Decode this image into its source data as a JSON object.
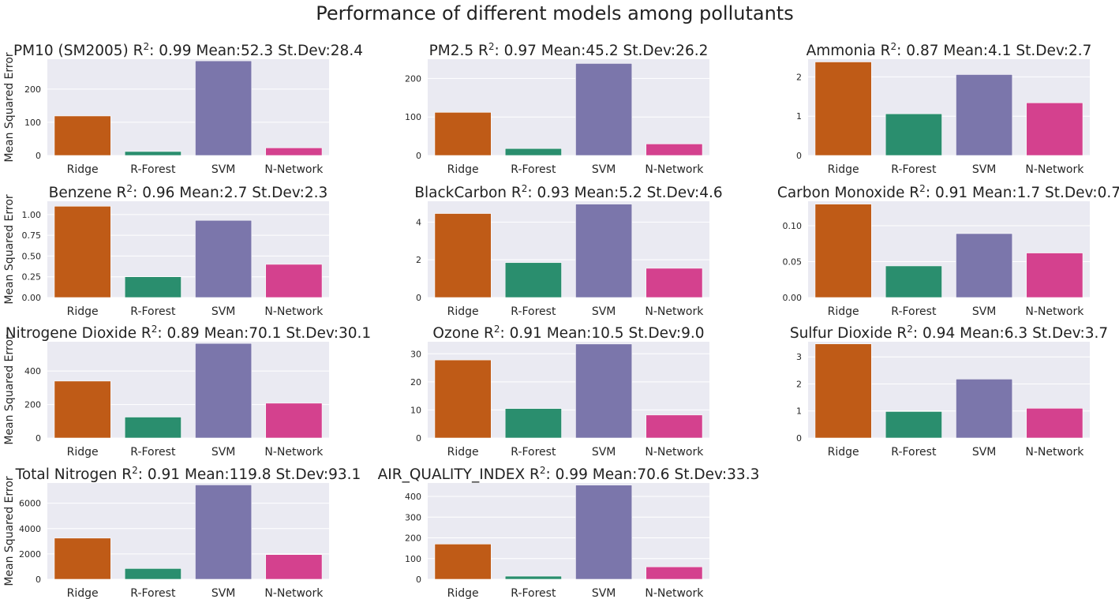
{
  "figure_title": "Performance of different models among pollutants",
  "ylabel": "Mean Squared Error",
  "categories": [
    "Ridge",
    "R-Forest",
    "SVM",
    "N-Network"
  ],
  "colors": [
    "#bf5b17",
    "#2a8e6e",
    "#7b76ab",
    "#d4418e"
  ],
  "chart_data": [
    {
      "type": "bar",
      "name": "PM10 (SM2005)",
      "r2": "0.99",
      "mean": "52.3",
      "stdev": "28.4",
      "categories": [
        "Ridge",
        "R-Forest",
        "SVM",
        "N-Network"
      ],
      "values": [
        119,
        12,
        285,
        23
      ],
      "ylim": [
        0,
        290
      ],
      "yticks": [
        0,
        100,
        200
      ],
      "yticklabels": [
        "0",
        "100",
        "200"
      ],
      "ylabel": "Mean Squared Error"
    },
    {
      "type": "bar",
      "name": "PM2.5",
      "r2": "0.97",
      "mean": "45.2",
      "stdev": "26.2",
      "categories": [
        "Ridge",
        "R-Forest",
        "SVM",
        "N-Network"
      ],
      "values": [
        112,
        18,
        239,
        30
      ],
      "ylim": [
        0,
        250
      ],
      "yticks": [
        0,
        100,
        200
      ],
      "yticklabels": [
        "0",
        "100",
        "200"
      ],
      "ylabel": ""
    },
    {
      "type": "bar",
      "name": "Ammonia",
      "r2": "0.87",
      "mean": "4.1",
      "stdev": "2.7",
      "categories": [
        "Ridge",
        "R-Forest",
        "SVM",
        "N-Network"
      ],
      "values": [
        2.38,
        1.06,
        2.06,
        1.34
      ],
      "ylim": [
        0,
        2.45
      ],
      "yticks": [
        0,
        1,
        2
      ],
      "yticklabels": [
        "0",
        "1",
        "2"
      ],
      "ylabel": ""
    },
    {
      "type": "bar",
      "name": "Benzene",
      "r2": "0.96",
      "mean": "2.7",
      "stdev": "2.3",
      "categories": [
        "Ridge",
        "R-Forest",
        "SVM",
        "N-Network"
      ],
      "values": [
        1.1,
        0.25,
        0.93,
        0.4
      ],
      "ylim": [
        0,
        1.16
      ],
      "yticks": [
        0,
        0.25,
        0.5,
        0.75,
        1.0
      ],
      "yticklabels": [
        "0.00",
        "0.25",
        "0.50",
        "0.75",
        "1.00"
      ],
      "ylabel": "Mean Squared Error"
    },
    {
      "type": "bar",
      "name": "BlackCarbon",
      "r2": "0.93",
      "mean": "5.2",
      "stdev": "4.6",
      "categories": [
        "Ridge",
        "R-Forest",
        "SVM",
        "N-Network"
      ],
      "values": [
        4.45,
        1.85,
        4.95,
        1.55
      ],
      "ylim": [
        0,
        5.1
      ],
      "yticks": [
        0,
        2,
        4
      ],
      "yticklabels": [
        "0",
        "2",
        "4"
      ],
      "ylabel": ""
    },
    {
      "type": "bar",
      "name": "Carbon Monoxide",
      "r2": "0.91",
      "mean": "1.7",
      "stdev": "0.7",
      "categories": [
        "Ridge",
        "R-Forest",
        "SVM",
        "N-Network"
      ],
      "values": [
        0.13,
        0.044,
        0.089,
        0.062
      ],
      "ylim": [
        0,
        0.134
      ],
      "yticks": [
        0,
        0.05,
        0.1
      ],
      "yticklabels": [
        "0.00",
        "0.05",
        "0.10"
      ],
      "ylabel": ""
    },
    {
      "type": "bar",
      "name": "Nitrogene Dioxide",
      "r2": "0.89",
      "mean": "70.1",
      "stdev": "30.1",
      "categories": [
        "Ridge",
        "R-Forest",
        "SVM",
        "N-Network"
      ],
      "values": [
        340,
        125,
        565,
        208
      ],
      "ylim": [
        0,
        575
      ],
      "yticks": [
        0,
        200,
        400
      ],
      "yticklabels": [
        "0",
        "200",
        "400"
      ],
      "ylabel": "Mean Squared Error"
    },
    {
      "type": "bar",
      "name": "Ozone",
      "r2": "0.91",
      "mean": "10.5",
      "stdev": "9.0",
      "categories": [
        "Ridge",
        "R-Forest",
        "SVM",
        "N-Network"
      ],
      "values": [
        27.8,
        10.5,
        33.5,
        8.2
      ],
      "ylim": [
        0,
        34.3
      ],
      "yticks": [
        0,
        10,
        20,
        30
      ],
      "yticklabels": [
        "0",
        "10",
        "20",
        "30"
      ],
      "ylabel": ""
    },
    {
      "type": "bar",
      "name": "Sulfur Dioxide",
      "r2": "0.94",
      "mean": "6.3",
      "stdev": "3.7",
      "categories": [
        "Ridge",
        "R-Forest",
        "SVM",
        "N-Network"
      ],
      "values": [
        3.48,
        0.98,
        2.18,
        1.1
      ],
      "ylim": [
        0,
        3.56
      ],
      "yticks": [
        0,
        1,
        2,
        3
      ],
      "yticklabels": [
        "0",
        "1",
        "2",
        "3"
      ],
      "ylabel": ""
    },
    {
      "type": "bar",
      "name": "Total Nitrogen",
      "r2": "0.91",
      "mean": "119.8",
      "stdev": "93.1",
      "categories": [
        "Ridge",
        "R-Forest",
        "SVM",
        "N-Network"
      ],
      "values": [
        3250,
        850,
        7450,
        1950
      ],
      "ylim": [
        0,
        7600
      ],
      "yticks": [
        0,
        2000,
        4000,
        6000
      ],
      "yticklabels": [
        "0",
        "2000",
        "4000",
        "6000"
      ],
      "ylabel": "Mean Squared Error"
    },
    {
      "type": "bar",
      "name": "AIR_QUALITY_INDEX",
      "r2": "0.99",
      "mean": "70.6",
      "stdev": "33.3",
      "categories": [
        "Ridge",
        "R-Forest",
        "SVM",
        "N-Network"
      ],
      "values": [
        170,
        15,
        455,
        60
      ],
      "ylim": [
        0,
        465
      ],
      "yticks": [
        0,
        100,
        200,
        300,
        400
      ],
      "yticklabels": [
        "0",
        "100",
        "200",
        "300",
        "400"
      ],
      "ylabel": ""
    }
  ]
}
